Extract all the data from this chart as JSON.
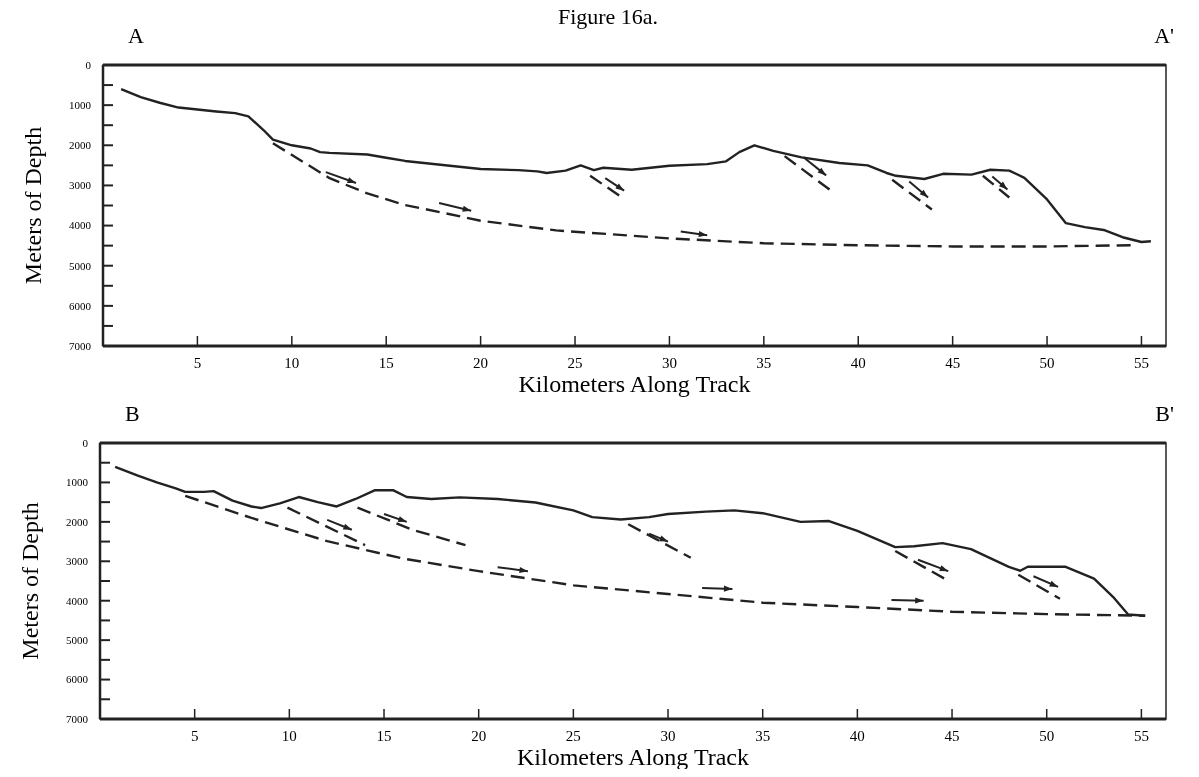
{
  "chart_data": [
    {
      "type": "line",
      "title": "Figure 16a.",
      "xlabel": "Kilometers Along Track",
      "ylabel": "Meters of Depth",
      "annotations": [
        "A",
        "A'"
      ],
      "xlim": [
        0,
        56.3
      ],
      "ylim": [
        7000,
        0
      ],
      "xticks": [
        5,
        10,
        15,
        20,
        25,
        30,
        35,
        40,
        45,
        50,
        55
      ],
      "yticks": [
        0,
        {
          "value": 500,
          "label": null
        },
        1000,
        {
          "value": 1500,
          "label": null
        },
        2000,
        {
          "value": 2500,
          "label": null
        },
        3000,
        {
          "value": 3500,
          "label": null
        },
        4000,
        {
          "value": 4500,
          "label": null
        },
        5000,
        {
          "value": 5500,
          "label": null
        },
        6000,
        {
          "value": 6500,
          "label": null
        },
        7000
      ],
      "grid": false,
      "series": [
        {
          "color": "#222222",
          "line_style": "solid",
          "x": [
            0.96,
            2,
            3,
            4,
            5,
            6,
            7,
            7.7,
            8.5,
            9,
            10,
            11,
            11.5,
            12,
            14,
            15,
            16,
            18,
            20,
            22,
            23,
            23.5,
            24.5,
            25.3,
            26,
            26.5,
            28,
            30,
            32,
            33,
            33.7,
            34.5,
            35.5,
            37,
            39,
            40.5,
            41.5,
            42,
            43.5,
            44.5,
            46,
            47,
            48,
            48.8,
            50,
            51,
            52,
            53,
            54,
            55,
            55.5
          ],
          "values": [
            600,
            800,
            940,
            1060,
            1110,
            1160,
            1200,
            1280,
            1620,
            1860,
            2000,
            2080,
            2170,
            2190,
            2230,
            2310,
            2390,
            2490,
            2590,
            2620,
            2650,
            2690,
            2630,
            2500,
            2620,
            2560,
            2610,
            2510,
            2470,
            2400,
            2170,
            2000,
            2140,
            2300,
            2440,
            2500,
            2690,
            2760,
            2840,
            2710,
            2730,
            2610,
            2630,
            2810,
            3350,
            3940,
            4040,
            4110,
            4290,
            4410,
            4390
          ]
        },
        {
          "color": "#222222",
          "line_style": "dashed",
          "x": [
            9,
            12,
            14,
            16,
            18,
            20,
            24,
            30,
            35,
            40,
            45,
            50,
            54.5
          ],
          "values": [
            1950,
            2820,
            3200,
            3490,
            3680,
            3880,
            4120,
            4320,
            4440,
            4490,
            4520,
            4520,
            4490
          ]
        },
        {
          "color": "#222222",
          "line_style": "dashed",
          "x": [
            25.8,
            27.5
          ],
          "values": [
            2760,
            3300
          ]
        },
        {
          "color": "#222222",
          "line_style": "dashed",
          "x": [
            36.1,
            38.5
          ],
          "values": [
            2270,
            3110
          ]
        },
        {
          "color": "#222222",
          "line_style": "dashed",
          "x": [
            41.8,
            43.9
          ],
          "values": [
            2860,
            3600
          ]
        },
        {
          "color": "#222222",
          "line_style": "dashed",
          "x": [
            46.6,
            48.0
          ],
          "values": [
            2760,
            3300
          ]
        }
      ]
    },
    {
      "type": "line",
      "xlabel": "Kilometers Along Track",
      "ylabel": "Meters of Depth",
      "annotations": [
        "B",
        "B'"
      ],
      "xlim": [
        0,
        56.3
      ],
      "ylim": [
        7000,
        0
      ],
      "xticks": [
        5,
        10,
        15,
        20,
        25,
        30,
        35,
        40,
        45,
        50,
        55
      ],
      "yticks": [
        0,
        {
          "value": 500,
          "label": null
        },
        1000,
        {
          "value": 1500,
          "label": null
        },
        2000,
        {
          "value": 2500,
          "label": null
        },
        3000,
        {
          "value": 3500,
          "label": null
        },
        4000,
        {
          "value": 4500,
          "label": null
        },
        5000,
        {
          "value": 5500,
          "label": null
        },
        6000,
        {
          "value": 6500,
          "label": null
        },
        7000
      ],
      "grid": false,
      "series": [
        {
          "color": "#222222",
          "line_style": "solid",
          "x": [
            0.8,
            2,
            3,
            4,
            4.5,
            5.5,
            6,
            6.5,
            7,
            8,
            8.5,
            9.5,
            10.5,
            11.5,
            12.5,
            13.5,
            14.5,
            15.5,
            16.2,
            17.5,
            19,
            21,
            23,
            25,
            26,
            27.5,
            29,
            30,
            32,
            33.5,
            35,
            37,
            38.5,
            40,
            42,
            43,
            44.5,
            46,
            48,
            48.6,
            49,
            51,
            52.5,
            53.5,
            54.3,
            55.2
          ],
          "values": [
            605,
            830,
            1000,
            1150,
            1240,
            1240,
            1220,
            1340,
            1460,
            1610,
            1650,
            1530,
            1370,
            1500,
            1610,
            1420,
            1200,
            1200,
            1370,
            1420,
            1380,
            1420,
            1510,
            1710,
            1880,
            1940,
            1880,
            1800,
            1740,
            1710,
            1780,
            2000,
            1980,
            2230,
            2640,
            2620,
            2540,
            2690,
            3140,
            3240,
            3140,
            3140,
            3440,
            3900,
            4350,
            4380
          ]
        },
        {
          "color": "#222222",
          "line_style": "dashed",
          "x": [
            4.5,
            8,
            12,
            16,
            20,
            25,
            30,
            35,
            40,
            45,
            50,
            55.2
          ],
          "values": [
            1340,
            1900,
            2490,
            2930,
            3250,
            3610,
            3830,
            4050,
            4160,
            4280,
            4340,
            4380
          ]
        },
        {
          "color": "#222222",
          "line_style": "dashed",
          "x": [
            9.9,
            14.0
          ],
          "values": [
            1640,
            2590
          ]
        },
        {
          "color": "#222222",
          "line_style": "dashed",
          "x": [
            13.6,
            16.5,
            19.3
          ],
          "values": [
            1640,
            2200,
            2590
          ]
        },
        {
          "color": "#222222",
          "line_style": "dashed",
          "x": [
            27.9,
            31.2
          ],
          "values": [
            2060,
            2910
          ]
        },
        {
          "color": "#222222",
          "line_style": "dashed",
          "x": [
            42.0,
            44.6
          ],
          "values": [
            2740,
            3440
          ]
        },
        {
          "color": "#222222",
          "line_style": "dashed",
          "x": [
            48.5,
            50.7
          ],
          "values": [
            3340,
            3950
          ]
        }
      ]
    }
  ]
}
